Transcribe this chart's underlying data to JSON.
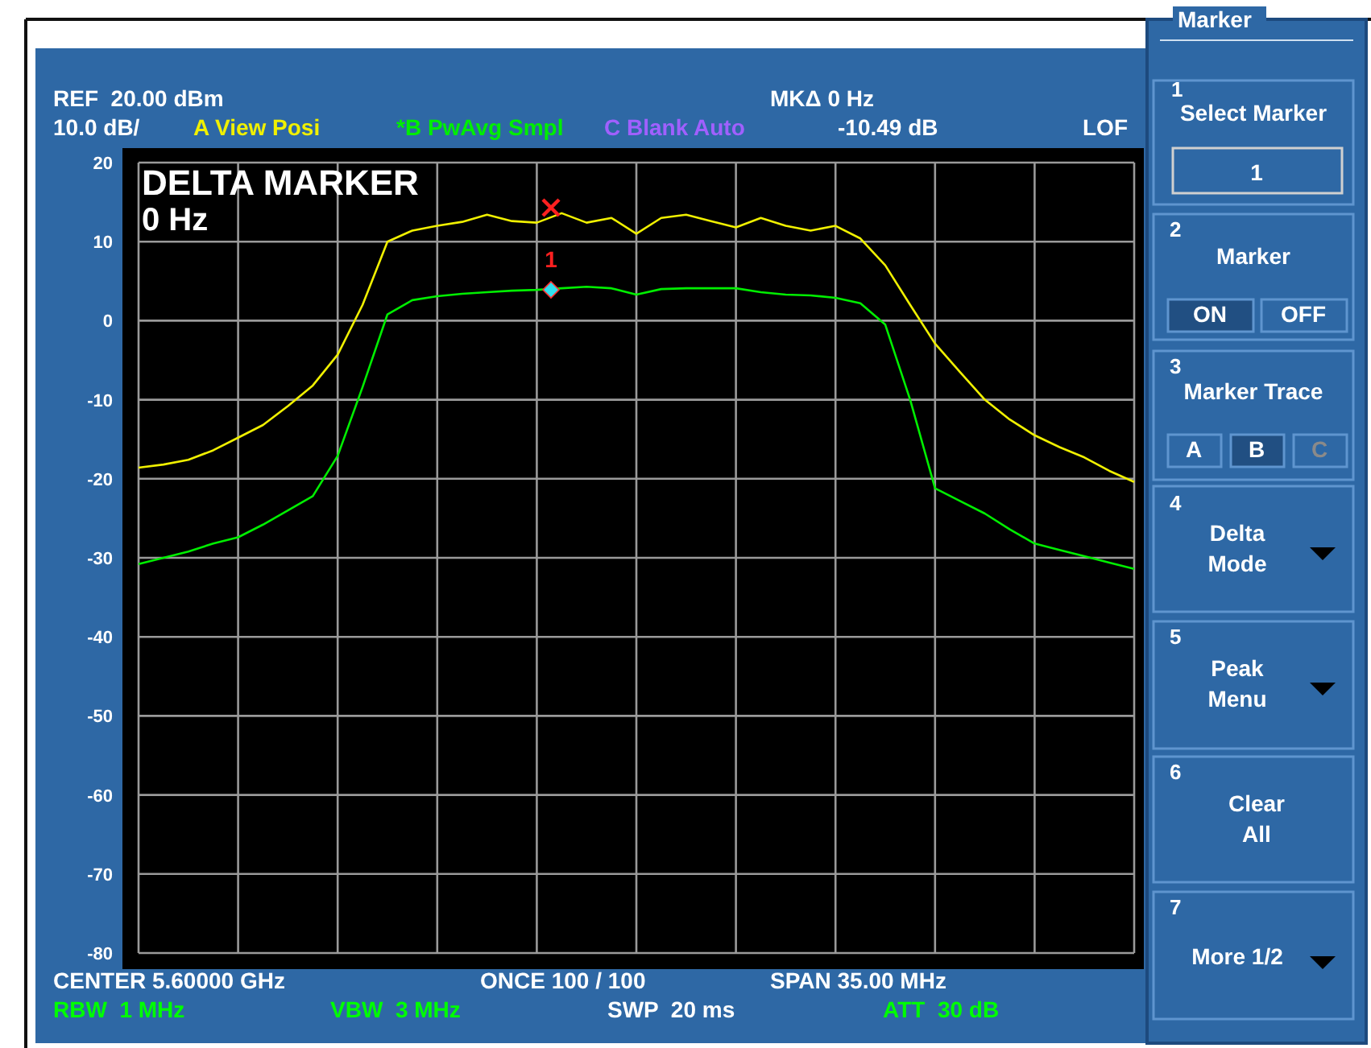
{
  "chart_data": {
    "type": "line",
    "title": "DELTA MARKER",
    "subtitle": "0 Hz",
    "categories": [
      null,
      null,
      null,
      null,
      null,
      null,
      null,
      null,
      null,
      null,
      null,
      null,
      null,
      null,
      null,
      null,
      null,
      null,
      null,
      null,
      null,
      null,
      null,
      null,
      null,
      null,
      null,
      null,
      null,
      null,
      null,
      null,
      null,
      null,
      null,
      null,
      null,
      null,
      null,
      null,
      null
    ],
    "ylim": [
      -80,
      20
    ],
    "yticks": [
      20,
      10,
      0,
      -10,
      -20,
      -30,
      -40,
      -50,
      -60,
      -70,
      -80
    ],
    "grid": true,
    "marker": "none",
    "line_style": "solid",
    "series": [
      {
        "name": "A View Posi",
        "color": "#f0f000",
        "values": [
          -18.6,
          -18.2,
          -17.6,
          -16.4,
          -14.8,
          -13.2,
          -10.8,
          -8.2,
          -4.3,
          2,
          10,
          11.4,
          12,
          12.5,
          13.4,
          12.6,
          12.4,
          13.6,
          12.4,
          13,
          11,
          13,
          13.4,
          12.6,
          11.8,
          13,
          12,
          11.4,
          12,
          10.4,
          7,
          2,
          -2.9,
          -6.5,
          -10,
          -12.5,
          -14.5,
          -16,
          -17.3,
          -19,
          -20.4
        ]
      },
      {
        "name": "*B PwAvg Smpl",
        "color": "#00ee00",
        "values": [
          -30.8,
          -30,
          -29.2,
          -28.2,
          -27.4,
          -25.8,
          -24,
          -22.2,
          -17.1,
          -8.4,
          0.8,
          2.6,
          3.1,
          3.4,
          3.6,
          3.8,
          3.9,
          4.1,
          4.3,
          4.1,
          3.3,
          4,
          4.1,
          4.1,
          4.1,
          3.6,
          3.3,
          3.2,
          2.9,
          2.2,
          -0.5,
          -10,
          -21.2,
          -22.8,
          -24.4,
          -26.4,
          -28.2,
          -29,
          -29.8,
          -30.6,
          -31.4
        ]
      }
    ],
    "annotations": [
      "REF  20.00 dBm",
      "10.0 dB/",
      "C Blank Auto",
      "MKΔ 0 Hz",
      "-10.49 dB",
      "LOF",
      "CENTER 5.60000 GHz",
      "ONCE 100 / 100",
      "SPAN 35.00 MHz",
      "RBW  1 MHz",
      "VBW  3 MHz",
      "SWP  20 ms",
      "ATT  30 dB",
      "1",
      "Marker",
      "1",
      "Select Marker",
      "1",
      "2",
      "Marker",
      "ON",
      "OFF",
      "3",
      "Marker Trace",
      "A",
      "B",
      "C",
      "4",
      "Delta Mode",
      "5",
      "Peak Menu",
      "6",
      "Clear All",
      "7",
      "More 1/2"
    ]
  }
}
